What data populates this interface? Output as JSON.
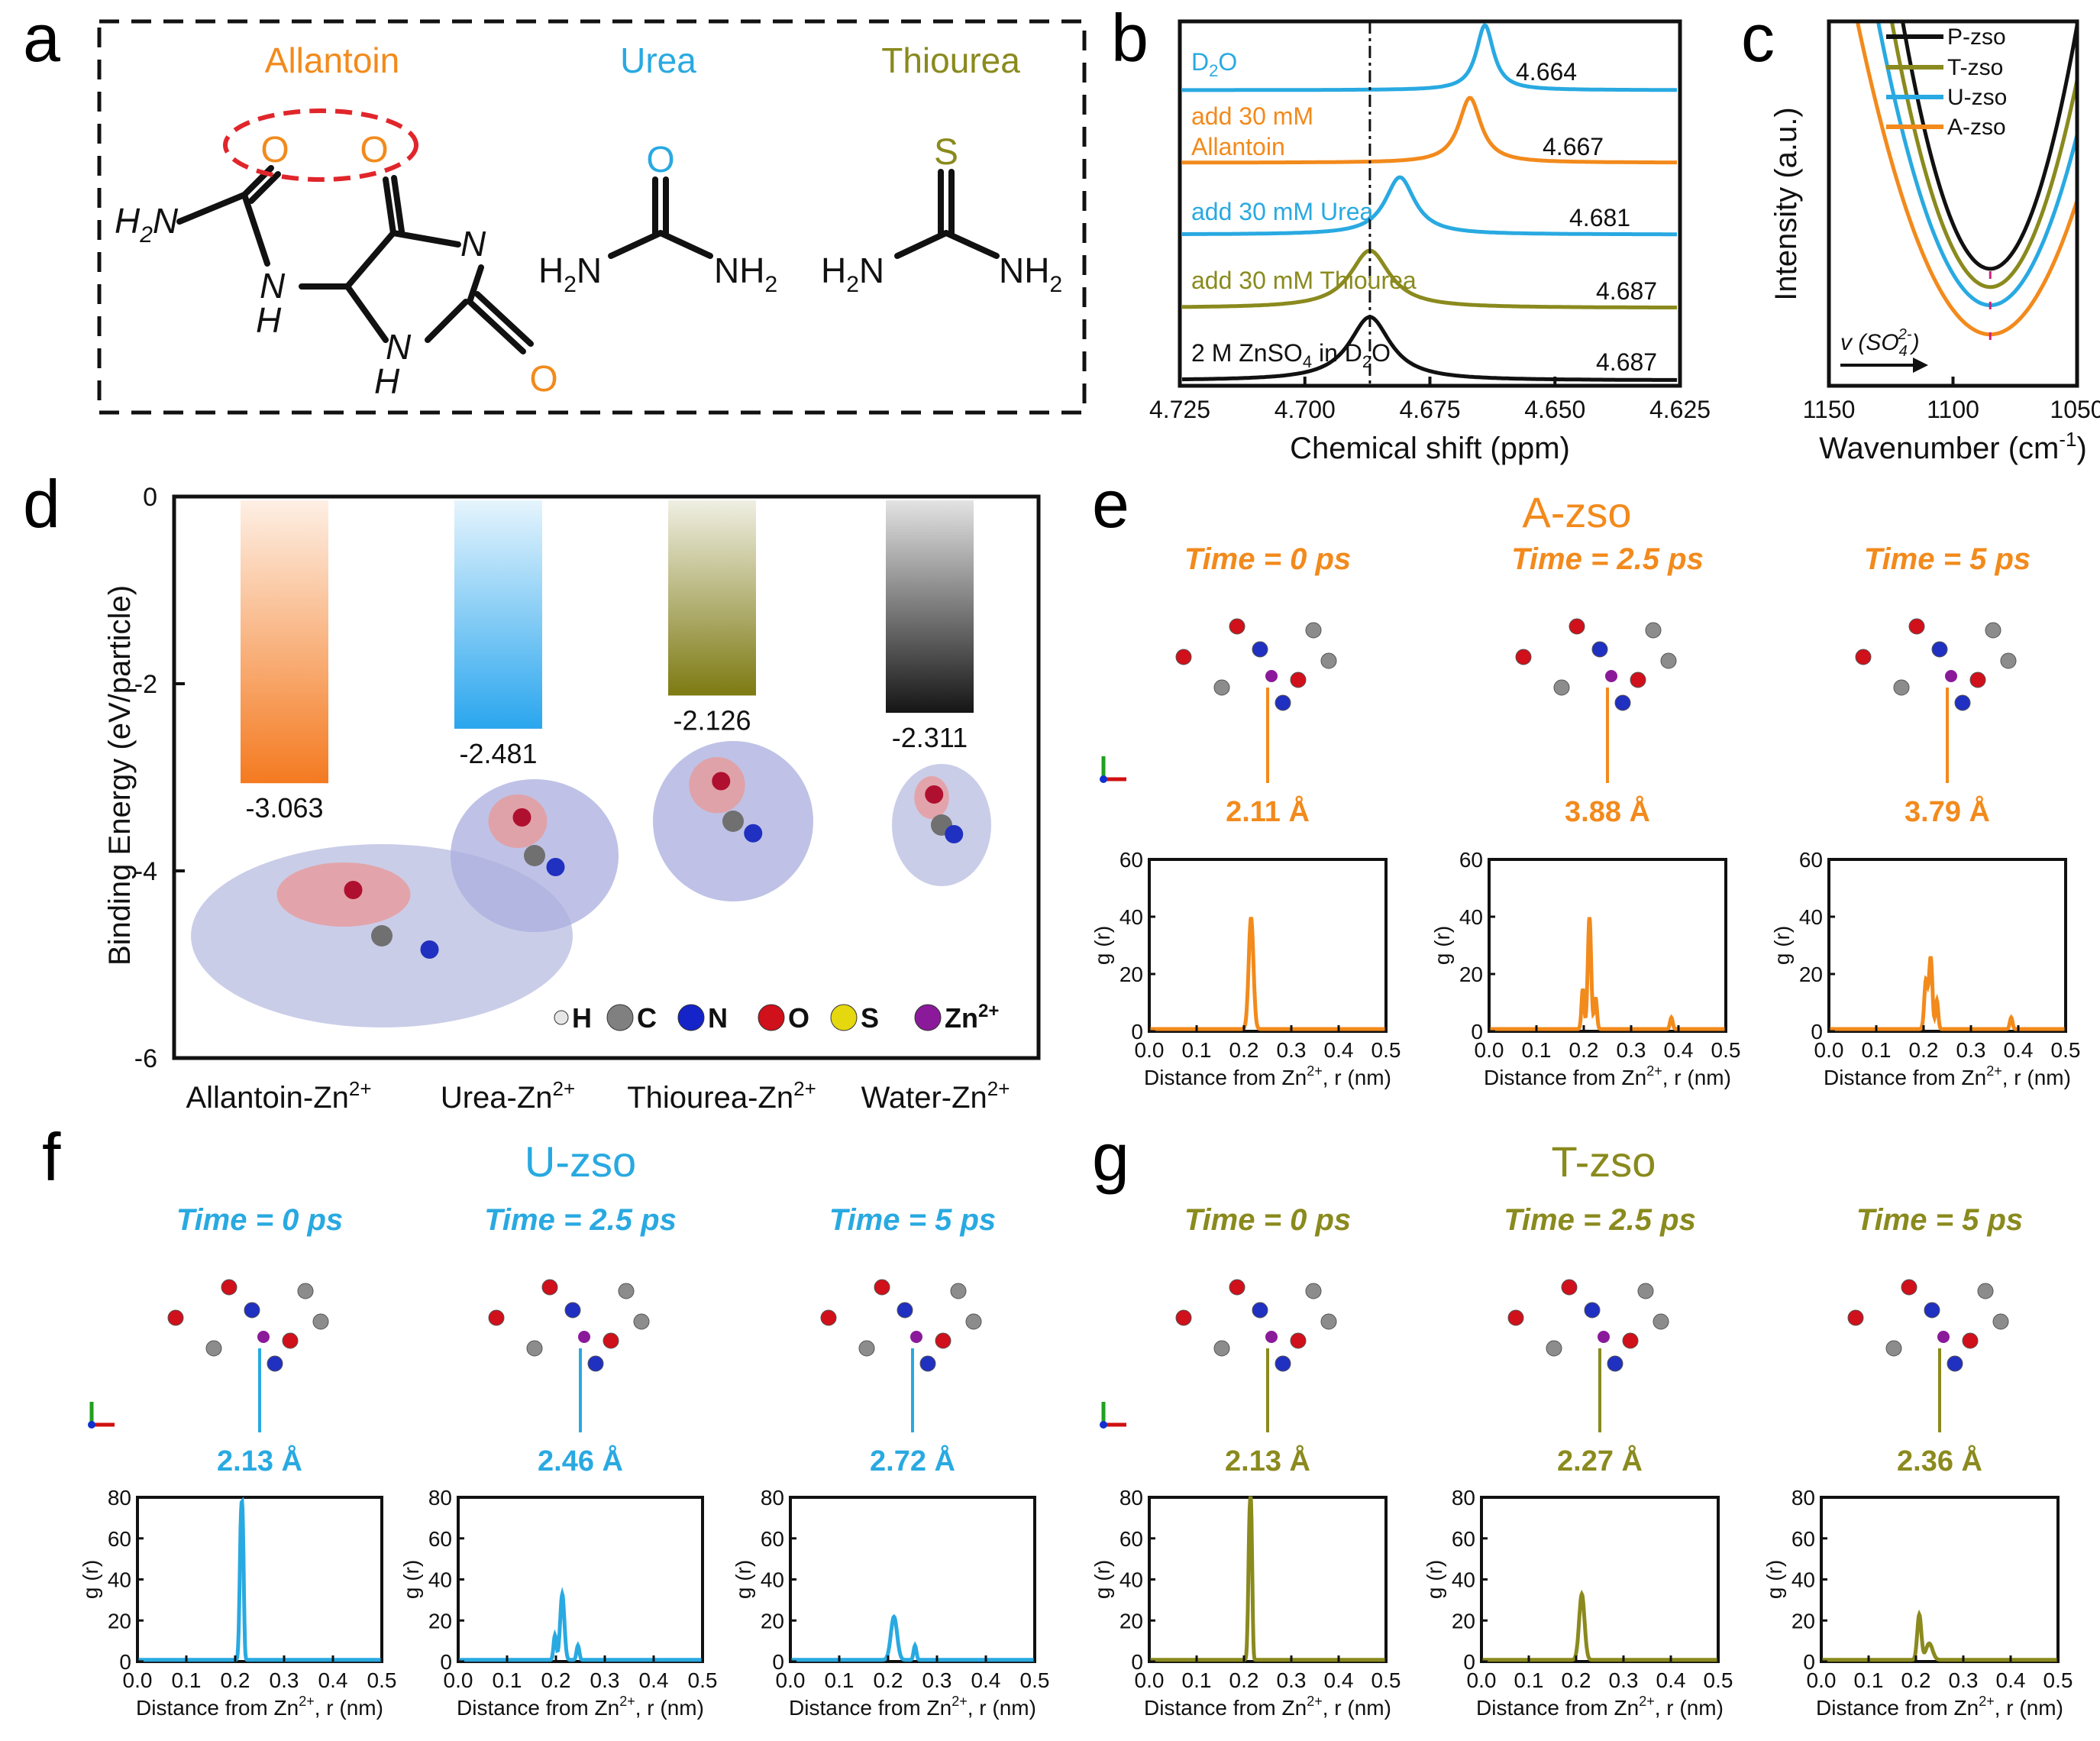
{
  "colors": {
    "allantoin": "#f28a1c",
    "urea": "#29a9e1",
    "thiourea": "#8a8a1e",
    "black": "#111111",
    "red": "#e0262b"
  },
  "panel_labels": {
    "a": "a",
    "b": "b",
    "c": "c",
    "d": "d",
    "e": "e",
    "f": "f",
    "g": "g"
  },
  "panel_a": {
    "titles": {
      "allantoin": "Allantoin",
      "urea": "Urea",
      "thiourea": "Thiourea"
    },
    "atoms": {
      "O": "O",
      "S": "S",
      "N": "N",
      "H": "H",
      "H2N": "H2N",
      "NH2": "NH2",
      "sub2": "2"
    }
  },
  "chart_data": [
    {
      "id": "b",
      "type": "line",
      "title": "",
      "xlabel": "Chemical shift (ppm)",
      "ylabel": "",
      "xlim": [
        4.725,
        4.625
      ],
      "xticks": [
        "4.625",
        "4.650",
        "4.675",
        "4.700",
        "4.725"
      ],
      "series": [
        {
          "name": "D2O",
          "label": "D",
          "label_sub": "2",
          "label_tail": "O",
          "peak": 4.664,
          "peak_label": "4.664",
          "color": "#29a9e1"
        },
        {
          "name": "add 30 mM Allantoin",
          "label": "add 30 mM",
          "label2": "Allantoin",
          "peak": 4.667,
          "peak_label": "4.667",
          "color": "#f28a1c"
        },
        {
          "name": "add 30 mM Urea",
          "label": "add 30 mM Urea",
          "peak": 4.681,
          "peak_label": "4.681",
          "color": "#29a9e1"
        },
        {
          "name": "add 30 mM Thiourea",
          "label": "add 30 mM Thiourea",
          "peak": 4.687,
          "peak_label": "4.687",
          "color": "#8a8a1e"
        },
        {
          "name": "2 M ZnSO4 in D2O",
          "label_a": "2 M ZnSO",
          "label_sub": "4",
          "label_b": " in D",
          "label_sub2": "2",
          "label_c": "O",
          "peak": 4.687,
          "peak_label": "4.687",
          "color": "#111111"
        }
      ],
      "reference_line": 4.687
    },
    {
      "id": "c",
      "type": "line",
      "title": "",
      "xlabel": "Wavenumber (cm",
      "xlabel_sup": "-1",
      "xlabel_end": ")",
      "ylabel": "Intensity (a.u.)",
      "xlim": [
        1150,
        1050
      ],
      "xticks": [
        "1150",
        "1100",
        "1050"
      ],
      "annotation": {
        "text": "v (SO",
        "sub": "4",
        "sup": "2-",
        "end": ")"
      },
      "series": [
        {
          "name": "P-zso",
          "color": "#111111",
          "minimum": 1085,
          "depth": 0.7
        },
        {
          "name": "T-zso",
          "color": "#8a8a1e",
          "minimum": 1085,
          "depth": 0.75
        },
        {
          "name": "U-zso",
          "color": "#29a9e1",
          "minimum": 1085,
          "depth": 0.8
        },
        {
          "name": "A-zso",
          "color": "#f28a1c",
          "minimum": 1085,
          "depth": 0.88
        }
      ]
    },
    {
      "id": "d",
      "type": "bar",
      "title": "",
      "ylabel": "Binding Energy (eV/particle)",
      "ylim": [
        -6,
        0
      ],
      "yticks": [
        "0",
        "-2",
        "-4",
        "-6"
      ],
      "categories": [
        "Allantoin-Zn",
        "Urea-Zn",
        "Thiourea-Zn",
        "Water-Zn"
      ],
      "category_sup": "2+",
      "values": [
        -3.063,
        -2.481,
        -2.126,
        -2.311
      ],
      "value_labels": [
        "-3.063",
        "-2.481",
        "-2.126",
        "-2.311"
      ],
      "bar_colors": [
        "#f47a20",
        "#2aa6ee",
        "#7d7a12",
        "#151515"
      ],
      "legend": [
        {
          "name": "H",
          "color": "#e6e6e6"
        },
        {
          "name": "C",
          "color": "#808080"
        },
        {
          "name": "N",
          "color": "#1424c8"
        },
        {
          "name": "O",
          "color": "#d0101a"
        },
        {
          "name": "S",
          "color": "#e5d80e"
        },
        {
          "name": "Zn",
          "sup": "2+",
          "color": "#8a1a9a"
        }
      ]
    },
    {
      "id": "e",
      "type": "line",
      "title": "A-zso",
      "color": "#f28a1c",
      "xlabel": "Distance from Zn",
      "xlabel_sup": "2+",
      "xlabel_end": ", r (nm)",
      "ylabel": "g (r)",
      "xlim": [
        0,
        0.5
      ],
      "ylim": [
        0,
        60
      ],
      "xticks": [
        "0.0",
        "0.1",
        "0.2",
        "0.3",
        "0.4",
        "0.5"
      ],
      "yticks": [
        "0",
        "20",
        "40",
        "60"
      ],
      "frames": [
        {
          "time": "Time = 0 ps",
          "distance": "2.11 Å",
          "peaks": [
            {
              "x": 0.215,
              "y": 39,
              "w": 0.007
            }
          ]
        },
        {
          "time": "Time = 2.5 ps",
          "distance": "3.88 Å",
          "peaks": [
            {
              "x": 0.198,
              "y": 14,
              "w": 0.004
            },
            {
              "x": 0.212,
              "y": 39,
              "w": 0.005
            },
            {
              "x": 0.225,
              "y": 11,
              "w": 0.004
            },
            {
              "x": 0.385,
              "y": 4,
              "w": 0.004
            }
          ]
        },
        {
          "time": "Time = 5 ps",
          "distance": "3.79 Å",
          "peaks": [
            {
              "x": 0.205,
              "y": 17,
              "w": 0.005
            },
            {
              "x": 0.215,
              "y": 25,
              "w": 0.005
            },
            {
              "x": 0.228,
              "y": 10,
              "w": 0.004
            },
            {
              "x": 0.385,
              "y": 4,
              "w": 0.004
            }
          ]
        }
      ]
    },
    {
      "id": "f",
      "type": "line",
      "title": "U-zso",
      "color": "#29a9e1",
      "xlabel": "Distance from Zn",
      "xlabel_sup": "2+",
      "xlabel_end": ", r (nm)",
      "ylabel": "g (r)",
      "xlim": [
        0,
        0.5
      ],
      "ylim": [
        0,
        80
      ],
      "xticks": [
        "0.0",
        "0.1",
        "0.2",
        "0.3",
        "0.4",
        "0.5"
      ],
      "yticks": [
        "0",
        "20",
        "40",
        "60",
        "80"
      ],
      "frames": [
        {
          "time": "Time = 0 ps",
          "distance": "2.13 Å",
          "peaks": [
            {
              "x": 0.212,
              "y": 66,
              "w": 0.004
            },
            {
              "x": 0.216,
              "y": 40,
              "w": 0.003
            }
          ]
        },
        {
          "time": "Time = 2.5 ps",
          "distance": "2.46 Å",
          "peaks": [
            {
              "x": 0.198,
              "y": 12,
              "w": 0.004
            },
            {
              "x": 0.213,
              "y": 32,
              "w": 0.006
            },
            {
              "x": 0.245,
              "y": 7,
              "w": 0.004
            }
          ]
        },
        {
          "time": "Time = 5 ps",
          "distance": "2.72 Å",
          "peaks": [
            {
              "x": 0.212,
              "y": 21,
              "w": 0.009
            },
            {
              "x": 0.255,
              "y": 7,
              "w": 0.004
            }
          ]
        }
      ]
    },
    {
      "id": "g",
      "type": "line",
      "title": "T-zso",
      "color": "#8a8a1e",
      "xlabel": "Distance from Zn",
      "xlabel_sup": "2+",
      "xlabel_end": ", r (nm)",
      "ylabel": "g (r)",
      "xlim": [
        0,
        0.5
      ],
      "ylim": [
        0,
        80
      ],
      "xticks": [
        "0.0",
        "0.1",
        "0.2",
        "0.3",
        "0.4",
        "0.5"
      ],
      "yticks": [
        "0",
        "20",
        "40",
        "60",
        "80"
      ],
      "frames": [
        {
          "time": "Time = 0 ps",
          "distance": "2.13 Å",
          "peaks": [
            {
              "x": 0.212,
              "y": 66,
              "w": 0.004
            },
            {
              "x": 0.216,
              "y": 44,
              "w": 0.003
            }
          ]
        },
        {
          "time": "Time = 2.5 ps",
          "distance": "2.27 Å",
          "peaks": [
            {
              "x": 0.212,
              "y": 32,
              "w": 0.008
            }
          ]
        },
        {
          "time": "Time = 5 ps",
          "distance": "2.36 Å",
          "peaks": [
            {
              "x": 0.207,
              "y": 22,
              "w": 0.006
            },
            {
              "x": 0.228,
              "y": 8,
              "w": 0.01
            }
          ]
        }
      ]
    }
  ]
}
